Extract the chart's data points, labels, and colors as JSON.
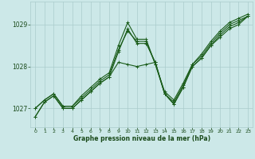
{
  "xlabel": "Graphe pression niveau de la mer (hPa)",
  "bg_color": "#cce8e8",
  "grid_color": "#aacccc",
  "line_color": "#1a5c1a",
  "text_color": "#1a4a1a",
  "xlim": [
    -0.5,
    23.5
  ],
  "ylim": [
    1026.55,
    1029.55
  ],
  "yticks": [
    1027,
    1028,
    1029
  ],
  "xticks": [
    0,
    1,
    2,
    3,
    4,
    5,
    6,
    7,
    8,
    9,
    10,
    11,
    12,
    13,
    14,
    15,
    16,
    17,
    18,
    19,
    20,
    21,
    22,
    23
  ],
  "series": [
    [
      1026.8,
      1027.15,
      1027.3,
      1027.0,
      1027.0,
      1027.2,
      1027.4,
      1027.6,
      1027.75,
      1028.1,
      1028.05,
      1028.0,
      1028.05,
      1028.1,
      1027.35,
      1027.1,
      1027.5,
      1028.0,
      1028.2,
      1028.5,
      1028.75,
      1028.95,
      1029.05,
      1029.2
    ],
    [
      1027.0,
      1027.2,
      1027.35,
      1027.05,
      1027.05,
      1027.25,
      1027.45,
      1027.65,
      1027.8,
      1028.4,
      1028.85,
      1028.6,
      1028.6,
      1028.05,
      1027.35,
      1027.15,
      1027.55,
      1028.05,
      1028.25,
      1028.55,
      1028.8,
      1029.0,
      1029.1,
      1029.2
    ],
    [
      1027.0,
      1027.2,
      1027.35,
      1027.05,
      1027.05,
      1027.3,
      1027.5,
      1027.7,
      1027.85,
      1028.5,
      1029.05,
      1028.65,
      1028.65,
      1028.05,
      1027.4,
      1027.2,
      1027.6,
      1028.05,
      1028.3,
      1028.6,
      1028.85,
      1029.05,
      1029.15,
      1029.25
    ],
    [
      1026.8,
      1027.15,
      1027.3,
      1027.0,
      1027.0,
      1027.2,
      1027.4,
      1027.6,
      1027.75,
      1028.35,
      1028.9,
      1028.55,
      1028.55,
      1028.1,
      1027.35,
      1027.1,
      1027.5,
      1028.0,
      1028.2,
      1028.5,
      1028.7,
      1028.9,
      1029.0,
      1029.2
    ]
  ]
}
